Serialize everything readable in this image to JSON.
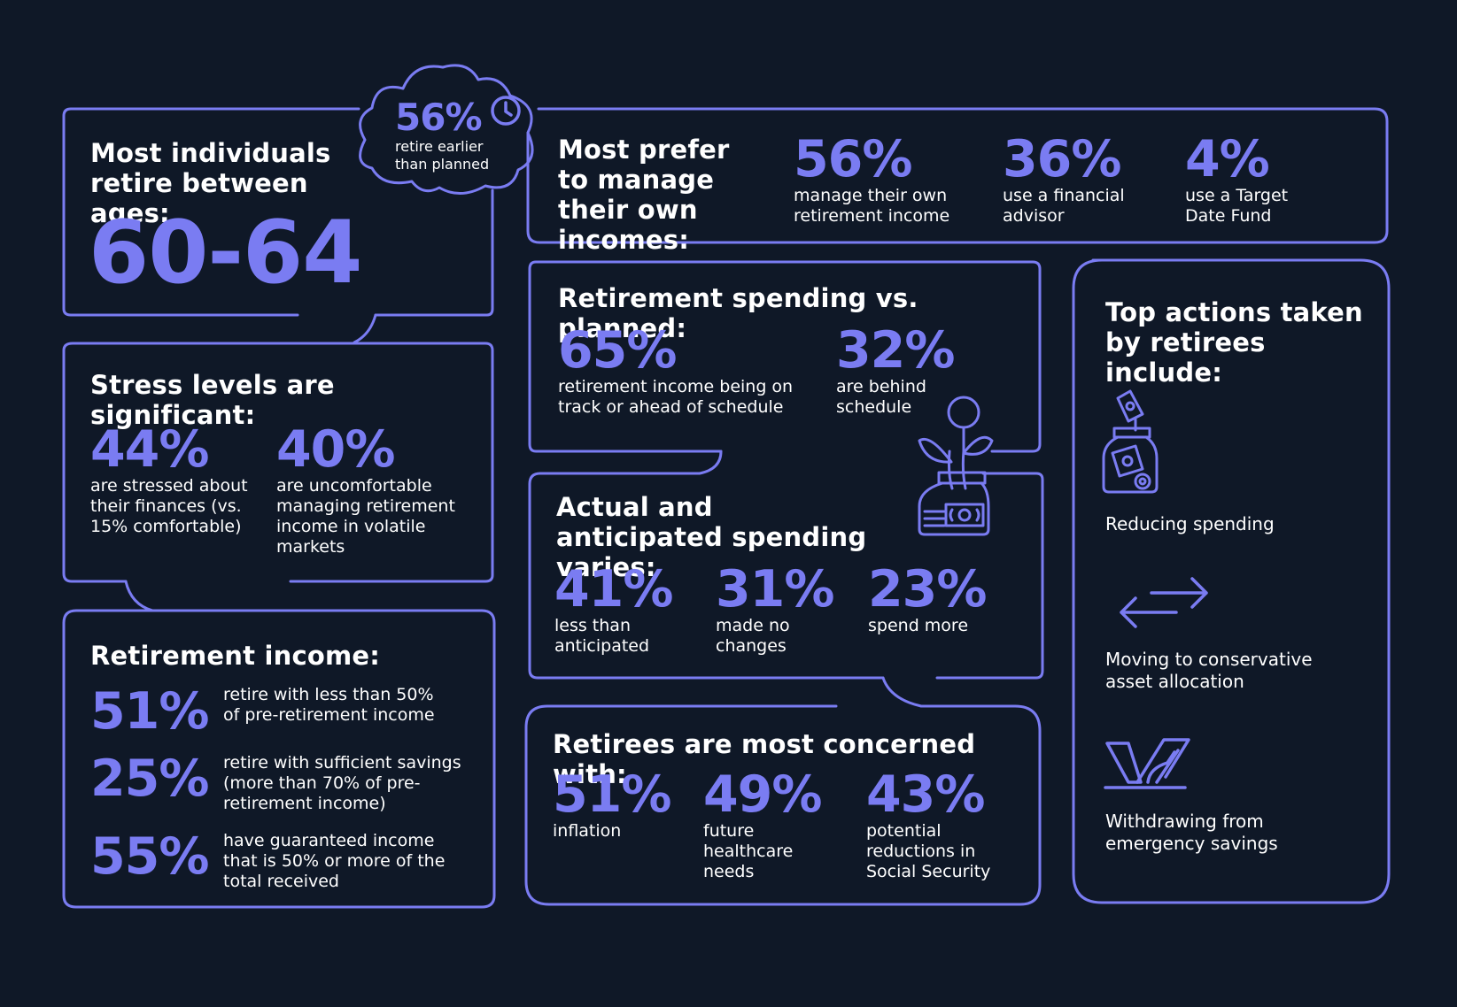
{
  "colors": {
    "background": "#0f1827",
    "accent": "#7a7cf2",
    "text": "#ffffff"
  },
  "ages": {
    "title": "Most individuals retire between ages:",
    "range": "60-64"
  },
  "earlier": {
    "value": "56%",
    "text": "retire earlier than planned",
    "icon": "clock-icon"
  },
  "manage": {
    "title": "Most prefer to manage their own incomes:",
    "stats": [
      {
        "value": "56%",
        "text": "manage their own retirement income"
      },
      {
        "value": "36%",
        "text": "use a financial advisor"
      },
      {
        "value": "4%",
        "text": "use a Target Date Fund"
      }
    ]
  },
  "stress": {
    "title": "Stress levels are significant:",
    "stats": [
      {
        "value": "44%",
        "text": "are stressed about their finances (vs. 15% comfortable)"
      },
      {
        "value": "40%",
        "text": "are uncomfortable managing retirement income in volatile markets"
      }
    ]
  },
  "income": {
    "title": "Retirement income:",
    "stats": [
      {
        "value": "51%",
        "text": "retire with less than 50% of pre-retirement income"
      },
      {
        "value": "25%",
        "text": "retire with sufficient savings (more than 70% of pre-retirement income)"
      },
      {
        "value": "55%",
        "text": "have guaranteed income that is 50% or more of the total received"
      }
    ]
  },
  "spending_vs": {
    "title": "Retirement spending vs. planned:",
    "stats": [
      {
        "value": "65%",
        "text": "retirement income being on track or ahead of schedule"
      },
      {
        "value": "32%",
        "text": "are behind schedule"
      }
    ]
  },
  "varies": {
    "title": "Actual and anticipated spending varies:",
    "stats": [
      {
        "value": "41%",
        "text": "less than anticipated"
      },
      {
        "value": "31%",
        "text": "made no changes"
      },
      {
        "value": "23%",
        "text": "spend more"
      }
    ]
  },
  "concerned": {
    "title": "Retirees are most concerned with:",
    "stats": [
      {
        "value": "51%",
        "text": "inflation"
      },
      {
        "value": "49%",
        "text": "future healthcare needs"
      },
      {
        "value": "43%",
        "text": "potential reductions in Social Security"
      }
    ]
  },
  "actions": {
    "title": "Top actions taken by retirees include:",
    "items": [
      {
        "label": "Reducing spending",
        "icon": "money-jar-icon"
      },
      {
        "label": "Moving to conservative asset allocation",
        "icon": "arrows-icon"
      },
      {
        "label": "Withdrawing from emergency savings",
        "icon": "withdraw-icon"
      }
    ]
  }
}
